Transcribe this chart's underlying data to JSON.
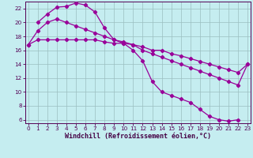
{
  "xlabel": "Windchill (Refroidissement éolien,°C)",
  "background_color": "#c5edf0",
  "grid_color": "#9bbfc0",
  "line_color": "#990099",
  "marker": "D",
  "markersize": 2.2,
  "linewidth": 0.9,
  "ylim": [
    5.5,
    23.0
  ],
  "xlim": [
    -0.3,
    23.3
  ],
  "yticks": [
    6,
    8,
    10,
    12,
    14,
    16,
    18,
    20,
    22
  ],
  "xticks": [
    0,
    1,
    2,
    3,
    4,
    5,
    6,
    7,
    8,
    9,
    10,
    11,
    12,
    13,
    14,
    15,
    16,
    17,
    18,
    19,
    20,
    21,
    22,
    23
  ],
  "series1_x": [
    0,
    1,
    2,
    3,
    4,
    5,
    6,
    7,
    8,
    9,
    10,
    11,
    12,
    13,
    14,
    15,
    16,
    17,
    18,
    19,
    20,
    21,
    22,
    23
  ],
  "series1_y": [
    16.8,
    17.5,
    17.5,
    17.5,
    17.5,
    17.5,
    17.5,
    17.5,
    17.2,
    17.0,
    17.0,
    16.8,
    16.5,
    16.0,
    16.0,
    15.5,
    15.2,
    14.8,
    14.4,
    14.0,
    13.6,
    13.2,
    12.8,
    14.0
  ],
  "series2_x": [
    1,
    2,
    3,
    4,
    5,
    6,
    7,
    8,
    9,
    10,
    11,
    12,
    13,
    14,
    15,
    16,
    17,
    18,
    19,
    20,
    21,
    22
  ],
  "series2_y": [
    20.0,
    21.2,
    22.2,
    22.3,
    22.8,
    22.5,
    21.5,
    19.2,
    17.5,
    17.0,
    16.0,
    14.5,
    11.5,
    10.0,
    9.5,
    9.0,
    8.5,
    7.5,
    6.5,
    6.0,
    5.8,
    6.0
  ],
  "series3_x": [
    0,
    1,
    2,
    3,
    4,
    5,
    6,
    7,
    8,
    9,
    10,
    11,
    12,
    13,
    14,
    15,
    16,
    17,
    18,
    19,
    20,
    21,
    22,
    23
  ],
  "series3_y": [
    16.8,
    18.8,
    20.0,
    20.5,
    20.0,
    19.5,
    19.0,
    18.5,
    18.0,
    17.5,
    17.2,
    16.8,
    16.0,
    15.5,
    15.0,
    14.5,
    14.0,
    13.5,
    13.0,
    12.5,
    12.0,
    11.5,
    11.0,
    14.0
  ],
  "figsize": [
    3.2,
    2.0
  ],
  "dpi": 100,
  "tick_fontsize": 5.2,
  "label_fontsize": 6.0
}
